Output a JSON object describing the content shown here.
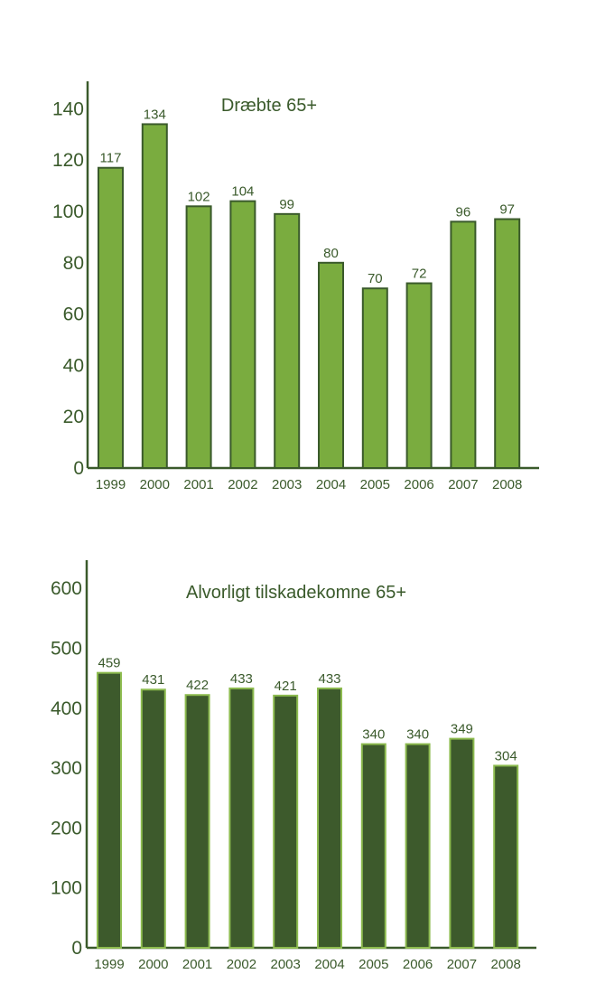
{
  "chart_data": [
    {
      "type": "bar",
      "title": "Dræbte 65+",
      "categories": [
        "1999",
        "2000",
        "2001",
        "2002",
        "2003",
        "2004",
        "2005",
        "2006",
        "2007",
        "2008"
      ],
      "values": [
        117,
        134,
        102,
        104,
        99,
        80,
        70,
        72,
        96,
        97
      ],
      "yticks": [
        "0",
        "20",
        "40",
        "60",
        "80",
        "100",
        "120",
        "140"
      ],
      "ylim": [
        0,
        150
      ],
      "grid": false,
      "colors": {
        "fill": "#7aac3f",
        "stroke": "#3a5a2b"
      }
    },
    {
      "type": "bar",
      "title": "Alvorligt tilskadekomne 65+",
      "categories": [
        "1999",
        "2000",
        "2001",
        "2002",
        "2003",
        "2004",
        "2005",
        "2006",
        "2007",
        "2008"
      ],
      "values": [
        459,
        431,
        422,
        433,
        421,
        433,
        340,
        340,
        349,
        304
      ],
      "yticks": [
        "0",
        "100",
        "200",
        "300",
        "400",
        "500",
        "600"
      ],
      "ylim": [
        0,
        650
      ],
      "grid": false,
      "colors": {
        "fill": "#3d5a2c",
        "stroke": "#8dbb4f"
      }
    }
  ]
}
